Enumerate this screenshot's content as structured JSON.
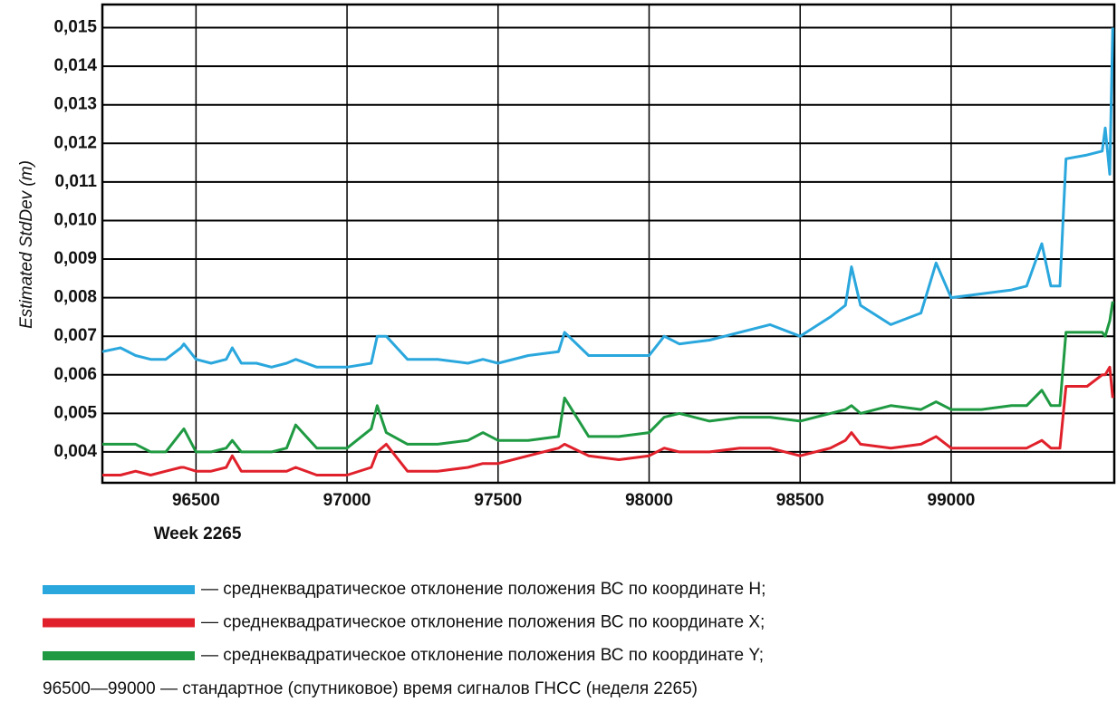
{
  "chart_data": {
    "type": "line",
    "ylabel": "Estimated StdDev (m)",
    "xlabel": "Week 2265",
    "note": "96500—99000 — стандартное (спутниковое) время сигналов ГНСС (неделя 2265)",
    "x": [
      96190,
      96250,
      96300,
      96350,
      96400,
      96450,
      96460,
      96500,
      96550,
      96600,
      96620,
      96650,
      96700,
      96750,
      96800,
      96830,
      96900,
      97000,
      97080,
      97100,
      97130,
      97200,
      97300,
      97400,
      97450,
      97500,
      97600,
      97700,
      97720,
      97800,
      97900,
      98000,
      98050,
      98100,
      98200,
      98300,
      98400,
      98500,
      98600,
      98650,
      98670,
      98700,
      98800,
      98900,
      98950,
      99000,
      99100,
      99200,
      99250,
      99300,
      99330,
      99360,
      99380,
      99450,
      99500,
      99510,
      99525,
      99535
    ],
    "series": [
      {
        "name": "— среднеквадратическое отклонение положения ВС по координате H;",
        "color": "#2aa7dd",
        "values": [
          0.0066,
          0.0067,
          0.0065,
          0.0064,
          0.0064,
          0.0067,
          0.0068,
          0.0064,
          0.0063,
          0.0064,
          0.0067,
          0.0063,
          0.0063,
          0.0062,
          0.0063,
          0.0064,
          0.0062,
          0.0062,
          0.0063,
          0.007,
          0.007,
          0.0064,
          0.0064,
          0.0063,
          0.0064,
          0.0063,
          0.0065,
          0.0066,
          0.0071,
          0.0065,
          0.0065,
          0.0065,
          0.007,
          0.0068,
          0.0069,
          0.0071,
          0.0073,
          0.007,
          0.0075,
          0.0078,
          0.0088,
          0.0078,
          0.0073,
          0.0076,
          0.0089,
          0.008,
          0.0081,
          0.0082,
          0.0083,
          0.0094,
          0.0083,
          0.0083,
          0.0116,
          0.0117,
          0.0118,
          0.0124,
          0.0112,
          0.015
        ]
      },
      {
        "name": "— среднеквадратическое отклонение положения ВС по координате X;",
        "color": "#e0212b",
        "values": [
          0.0034,
          0.0034,
          0.0035,
          0.0034,
          0.0035,
          0.0036,
          0.0036,
          0.0035,
          0.0035,
          0.0036,
          0.0039,
          0.0035,
          0.0035,
          0.0035,
          0.0035,
          0.0036,
          0.0034,
          0.0034,
          0.0036,
          0.004,
          0.0042,
          0.0035,
          0.0035,
          0.0036,
          0.0037,
          0.0037,
          0.0039,
          0.0041,
          0.0042,
          0.0039,
          0.0038,
          0.0039,
          0.0041,
          0.004,
          0.004,
          0.0041,
          0.0041,
          0.0039,
          0.0041,
          0.0043,
          0.0045,
          0.0042,
          0.0041,
          0.0042,
          0.0044,
          0.0041,
          0.0041,
          0.0041,
          0.0041,
          0.0043,
          0.0041,
          0.0041,
          0.0057,
          0.0057,
          0.006,
          0.006,
          0.0062,
          0.0054
        ]
      },
      {
        "name": "— среднеквадратическое отклонение положения ВС по координате Y;",
        "color": "#1f9a42",
        "values": [
          0.0042,
          0.0042,
          0.0042,
          0.004,
          0.004,
          0.0045,
          0.0046,
          0.004,
          0.004,
          0.0041,
          0.0043,
          0.004,
          0.004,
          0.004,
          0.0041,
          0.0047,
          0.0041,
          0.0041,
          0.0046,
          0.0052,
          0.0045,
          0.0042,
          0.0042,
          0.0043,
          0.0045,
          0.0043,
          0.0043,
          0.0044,
          0.0054,
          0.0044,
          0.0044,
          0.0045,
          0.0049,
          0.005,
          0.0048,
          0.0049,
          0.0049,
          0.0048,
          0.005,
          0.0051,
          0.0052,
          0.005,
          0.0052,
          0.0051,
          0.0053,
          0.0051,
          0.0051,
          0.0052,
          0.0052,
          0.0056,
          0.0052,
          0.0052,
          0.0071,
          0.0071,
          0.0071,
          0.007,
          0.0074,
          0.0079
        ]
      }
    ],
    "xlim": [
      96190,
      99540
    ],
    "xticks": [
      96500,
      97000,
      97500,
      98000,
      98500,
      99000
    ],
    "ylim": [
      0.0032,
      0.0156
    ],
    "yticks": [
      {
        "value": 0.004,
        "label": "0,004"
      },
      {
        "value": 0.005,
        "label": "0,005"
      },
      {
        "value": 0.006,
        "label": "0,006"
      },
      {
        "value": 0.007,
        "label": "0,007"
      },
      {
        "value": 0.008,
        "label": "0,008"
      },
      {
        "value": 0.009,
        "label": "0,009"
      },
      {
        "value": 0.01,
        "label": "0,010"
      },
      {
        "value": 0.011,
        "label": "0,011"
      },
      {
        "value": 0.012,
        "label": "0,012"
      },
      {
        "value": 0.013,
        "label": "0,013"
      },
      {
        "value": 0.014,
        "label": "0,014"
      },
      {
        "value": 0.015,
        "label": "0,015"
      }
    ],
    "grid": true
  }
}
